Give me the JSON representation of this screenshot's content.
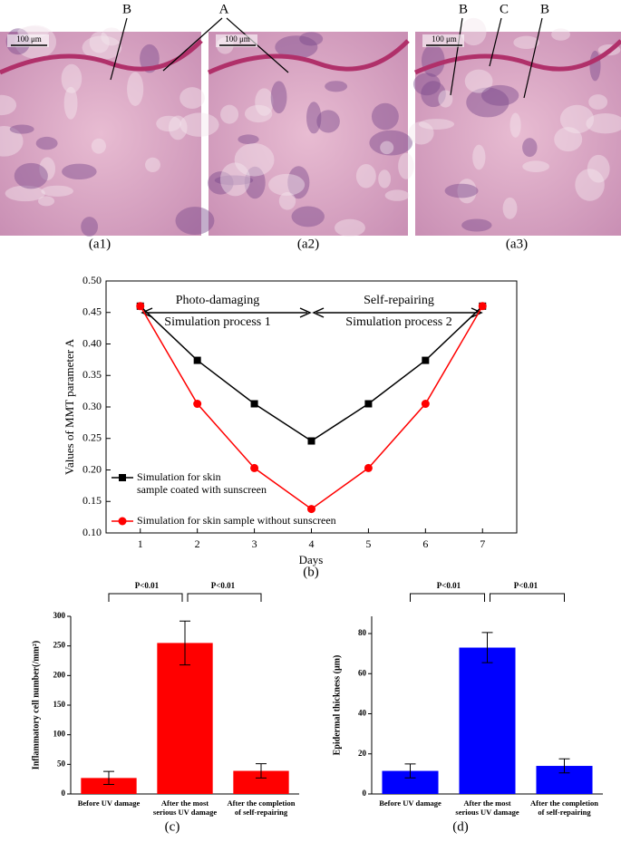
{
  "figure": {
    "panels": [
      {
        "label": "(a1)",
        "scale": "100 μm"
      },
      {
        "label": "(a2)",
        "scale": "100 μm"
      },
      {
        "label": "(a3)",
        "scale": "100 μm"
      }
    ],
    "pointers": [
      "B",
      "A",
      "B",
      "C",
      "B"
    ]
  },
  "chart_data": [
    {
      "type": "line",
      "label": "(b)",
      "xlabel": "Days",
      "ylabel": "Values of  MMT parameter A",
      "x": [
        1,
        2,
        3,
        4,
        5,
        6,
        7
      ],
      "xlim": [
        0.4,
        7.6
      ],
      "xticks": [
        1,
        2,
        3,
        4,
        5,
        6,
        7
      ],
      "ylim": [
        0.1,
        0.5
      ],
      "yticks": [
        {
          "value": 0.1,
          "label": "0.10"
        },
        {
          "value": 0.15,
          "label": "0.15"
        },
        {
          "value": 0.2,
          "label": "0.20"
        },
        {
          "value": 0.25,
          "label": "0.25"
        },
        {
          "value": 0.3,
          "label": "0.30"
        },
        {
          "value": 0.35,
          "label": "0.35"
        },
        {
          "value": 0.4,
          "label": "0.40"
        },
        {
          "value": 0.45,
          "label": "0.45"
        },
        {
          "value": 0.5,
          "label": "0.50"
        }
      ],
      "annotations": [
        "Photo-damaging",
        "Simulation process 1",
        "Self-repairing",
        "Simulation process 2"
      ],
      "series": [
        {
          "name": "Simulation for skin\nsample coated with sunscreen",
          "color": "#000000",
          "marker": "square",
          "values": [
            0.46,
            0.374,
            0.305,
            0.246,
            0.305,
            0.374,
            0.46
          ]
        },
        {
          "name": "Simulation for skin sample without sunscreen",
          "color": "#ff0000",
          "marker": "circle",
          "values": [
            0.46,
            0.305,
            0.203,
            0.138,
            0.203,
            0.305,
            0.46
          ]
        }
      ]
    },
    {
      "type": "bar",
      "label": "(c)",
      "ylabel": "Inflammatory cell number(/mm²)",
      "color": "#ff0000",
      "categories": [
        "Before UV damage",
        "After the most\nserious UV damage",
        "After the completion\nof self-repairing"
      ],
      "values": [
        27,
        255,
        39
      ],
      "errors": [
        11,
        37,
        12
      ],
      "ylim": [
        0,
        300
      ],
      "yticks": [
        0,
        50,
        100,
        150,
        200,
        250,
        300
      ],
      "annotations": [
        "P<0.01",
        "P<0.01"
      ]
    },
    {
      "type": "bar",
      "label": "(d)",
      "ylabel": "Epidermal thickness (μm)",
      "color": "#0000ff",
      "categories": [
        "Before UV damage",
        "After the most\nserious UV damage",
        "After the completion\nof self-repairing"
      ],
      "values": [
        11.5,
        73,
        14
      ],
      "errors": [
        3.5,
        7.5,
        3.5
      ],
      "ylim": [
        0,
        88.6
      ],
      "yticks": [
        0,
        20,
        40,
        60,
        80
      ],
      "annotations": [
        "P<0.01",
        "P<0.01"
      ]
    }
  ]
}
